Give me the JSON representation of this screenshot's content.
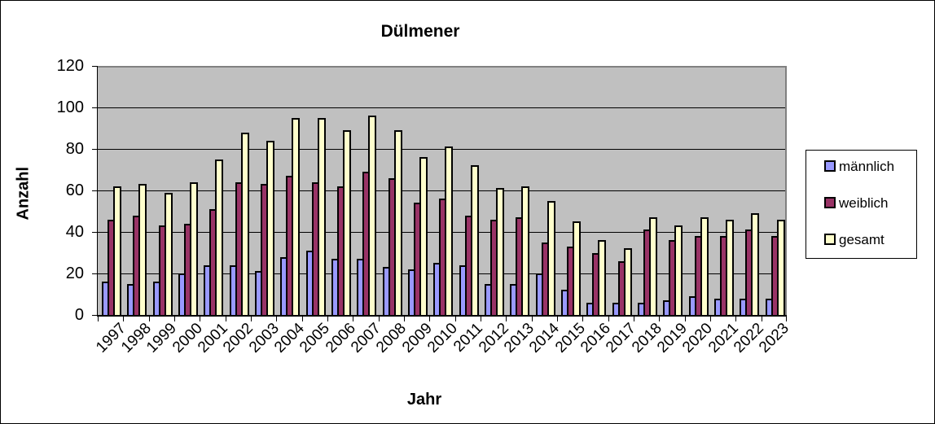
{
  "chart_data": {
    "type": "bar",
    "title": "Dülmener",
    "xlabel": "Jahr",
    "ylabel": "Anzahl",
    "ylim": [
      0,
      120
    ],
    "yticks": [
      0,
      20,
      40,
      60,
      80,
      100,
      120
    ],
    "grid": true,
    "legend_position": "right",
    "categories": [
      "1997",
      "1998",
      "1999",
      "2000",
      "2001",
      "2002",
      "2003",
      "2004",
      "2005",
      "2006",
      "2007",
      "2008",
      "2009",
      "2010",
      "2011",
      "2012",
      "2013",
      "2014",
      "2015",
      "2016",
      "2017",
      "2018",
      "2019",
      "2020",
      "2021",
      "2022",
      "2023"
    ],
    "series": [
      {
        "name": "männlich",
        "color": "#9999ff",
        "values": [
          16,
          15,
          16,
          20,
          24,
          24,
          21,
          28,
          31,
          27,
          27,
          23,
          22,
          25,
          24,
          15,
          15,
          20,
          12,
          6,
          6,
          6,
          7,
          9,
          8,
          8,
          8
        ]
      },
      {
        "name": "weiblich",
        "color": "#993366",
        "values": [
          46,
          48,
          43,
          44,
          51,
          64,
          63,
          67,
          64,
          62,
          69,
          66,
          54,
          56,
          48,
          46,
          47,
          35,
          33,
          30,
          26,
          41,
          36,
          38,
          38,
          41,
          38
        ]
      },
      {
        "name": "gesamt",
        "color": "#ffffcc",
        "values": [
          62,
          63,
          59,
          64,
          75,
          88,
          84,
          95,
          95,
          89,
          96,
          89,
          76,
          81,
          72,
          61,
          62,
          55,
          45,
          36,
          32,
          47,
          43,
          47,
          46,
          49,
          46
        ]
      }
    ]
  },
  "colors": {
    "plot_background": "#c0c0c0",
    "plot_border": "#808080"
  }
}
